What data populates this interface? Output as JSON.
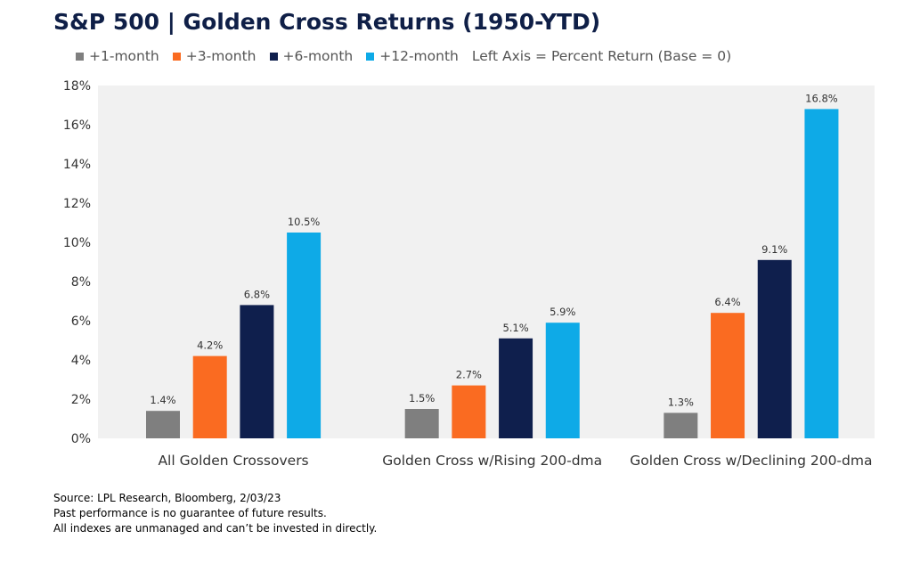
{
  "title": "S&P 500 | Golden Cross Returns (1950-YTD)",
  "legend_note": "Left Axis = Percent Return (Base = 0)",
  "colors": {
    "+1-month": "#7f7f7f",
    "+3-month": "#fa6b21",
    "+6-month": "#0f1f4d",
    "+12-month": "#0eaae7",
    "plot_background": "#f1f1f1"
  },
  "chart_data": {
    "type": "bar",
    "categories": [
      "All Golden Crossovers",
      "Golden Cross w/Rising 200-dma",
      "Golden Cross w/Declining 200-dma"
    ],
    "series": [
      {
        "name": "+1-month",
        "values": [
          1.4,
          1.5,
          1.3
        ],
        "labels": [
          "1.4%",
          "1.5%",
          "1.3%"
        ]
      },
      {
        "name": "+3-month",
        "values": [
          4.2,
          2.7,
          6.4
        ],
        "labels": [
          "4.2%",
          "2.7%",
          "6.4%"
        ]
      },
      {
        "name": "+6-month",
        "values": [
          6.8,
          5.1,
          9.1
        ],
        "labels": [
          "6.8%",
          "5.1%",
          "9.1%"
        ]
      },
      {
        "name": "+12-month",
        "values": [
          10.5,
          5.9,
          16.8
        ],
        "labels": [
          "10.5%",
          "5.9%",
          "16.8%"
        ]
      }
    ],
    "ylim": [
      0,
      18
    ],
    "yticks": [
      "0%",
      "2%",
      "4%",
      "6%",
      "8%",
      "10%",
      "12%",
      "14%",
      "16%",
      "18%"
    ],
    "grid": false,
    "legend": "top-left"
  },
  "footer": {
    "line1": "Source: LPL Research, Bloomberg, 2/03/23",
    "line2": "Past performance is no guarantee of future results.",
    "line3": "All indexes are unmanaged and can’t be invested in directly."
  }
}
